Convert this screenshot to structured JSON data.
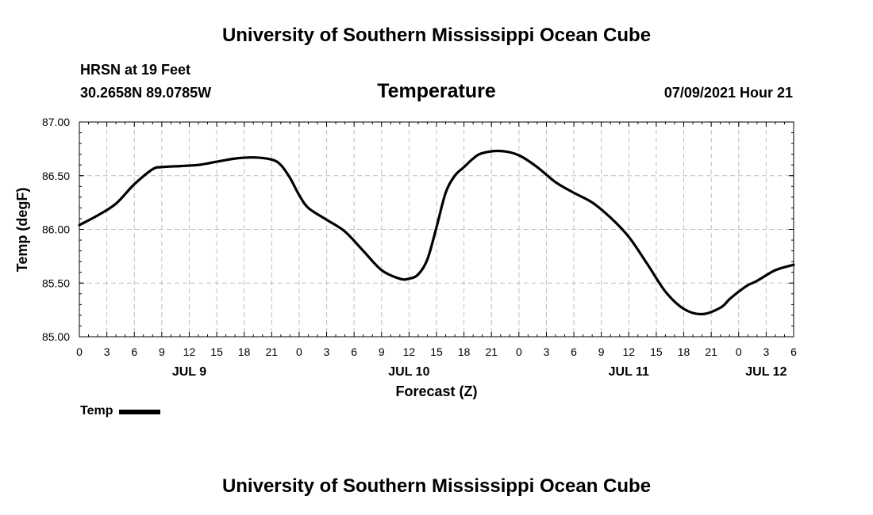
{
  "header": {
    "title": "University of Southern Mississippi Ocean Cube",
    "station": "HRSN at 19 Feet",
    "coordinates": "30.2658N  89.0785W",
    "variable": "Temperature",
    "datetime": "07/09/2021 Hour 21"
  },
  "footer": {
    "title": "University of Southern Mississippi Ocean Cube"
  },
  "legend": {
    "label": "Temp",
    "color": "#000000"
  },
  "chart_data": {
    "type": "line",
    "title": "Temperature",
    "xlabel": "Forecast (Z)",
    "ylabel": "Temp (degF)",
    "ylim": [
      85.0,
      87.0
    ],
    "xlim": [
      0,
      78
    ],
    "x_unit": "hours from 07/09 00Z",
    "y_ticks": [
      "85.00",
      "85.50",
      "86.00",
      "86.50",
      "87.00"
    ],
    "x_tick_labels": [
      "0",
      "3",
      "6",
      "9",
      "12",
      "15",
      "18",
      "21",
      "0",
      "3",
      "6",
      "9",
      "12",
      "15",
      "18",
      "21",
      "0",
      "3",
      "6",
      "9",
      "12",
      "15",
      "18",
      "21",
      "0",
      "3",
      "6"
    ],
    "x_tick_step_hours": 3,
    "day_labels": [
      {
        "label": "JUL 9",
        "hour": 12
      },
      {
        "label": "JUL 10",
        "hour": 36
      },
      {
        "label": "JUL 11",
        "hour": 60
      },
      {
        "label": "JUL 12",
        "hour": 75
      }
    ],
    "grid": true,
    "legend_position": "bottom-left",
    "series": [
      {
        "name": "Temp",
        "color": "#000000",
        "x": [
          0,
          2,
          4,
          6,
          8,
          9,
          11,
          13,
          15,
          17,
          19,
          21,
          22,
          23,
          24,
          25,
          27,
          29,
          31,
          33,
          35,
          36,
          37,
          38,
          39,
          40,
          41,
          42,
          43,
          44,
          46,
          48,
          50,
          52,
          54,
          56,
          58,
          60,
          62,
          64,
          66,
          68,
          70,
          71,
          72,
          73,
          74,
          76,
          78
        ],
        "values": [
          86.04,
          86.13,
          86.24,
          86.42,
          86.56,
          86.58,
          86.59,
          86.6,
          86.63,
          86.66,
          86.67,
          86.65,
          86.6,
          86.48,
          86.32,
          86.2,
          86.09,
          85.98,
          85.8,
          85.62,
          85.54,
          85.54,
          85.58,
          85.72,
          86.02,
          86.34,
          86.5,
          86.58,
          86.66,
          86.71,
          86.73,
          86.69,
          86.58,
          86.44,
          86.34,
          86.25,
          86.11,
          85.93,
          85.68,
          85.42,
          85.26,
          85.21,
          85.27,
          85.35,
          85.42,
          85.48,
          85.52,
          85.62,
          85.67
        ]
      }
    ]
  }
}
